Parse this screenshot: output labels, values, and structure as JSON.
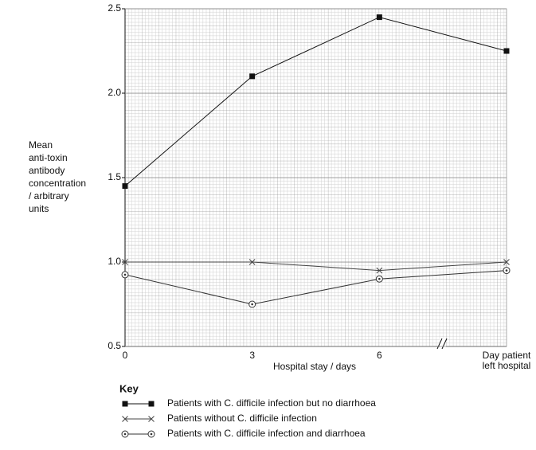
{
  "chart_data": {
    "type": "line",
    "ylabel": [
      "Mean",
      "anti-toxin",
      "antibody",
      "concentration",
      "/ arbitrary",
      "units"
    ],
    "xlabel": "Hospital stay / days",
    "categories": [
      "0",
      "3",
      "6",
      "Day patient left hospital"
    ],
    "ylim": [
      0.5,
      2.5
    ],
    "yticks": [
      0.5,
      {
        "value": 1,
        "label": "1.0"
      },
      1.5,
      {
        "value": 2,
        "label": "2.0"
      },
      2.5
    ],
    "grid": true,
    "legend_title": "Key",
    "series": [
      {
        "name": "Patients with C. difficile infection but no diarrhoea",
        "color": "#111111",
        "marker": "square",
        "values": [
          1.45,
          2.1,
          2.45,
          2.25
        ]
      },
      {
        "name": "Patients without C. difficile infection",
        "color": "#444444",
        "marker": "x",
        "values": [
          1.0,
          1.0,
          0.95,
          1.0
        ]
      },
      {
        "name": "Patients with C. difficile infection and diarrhoea",
        "color": "#333333",
        "marker": "circle-dot",
        "values": [
          0.925,
          0.75,
          0.9,
          0.95
        ]
      }
    ]
  }
}
